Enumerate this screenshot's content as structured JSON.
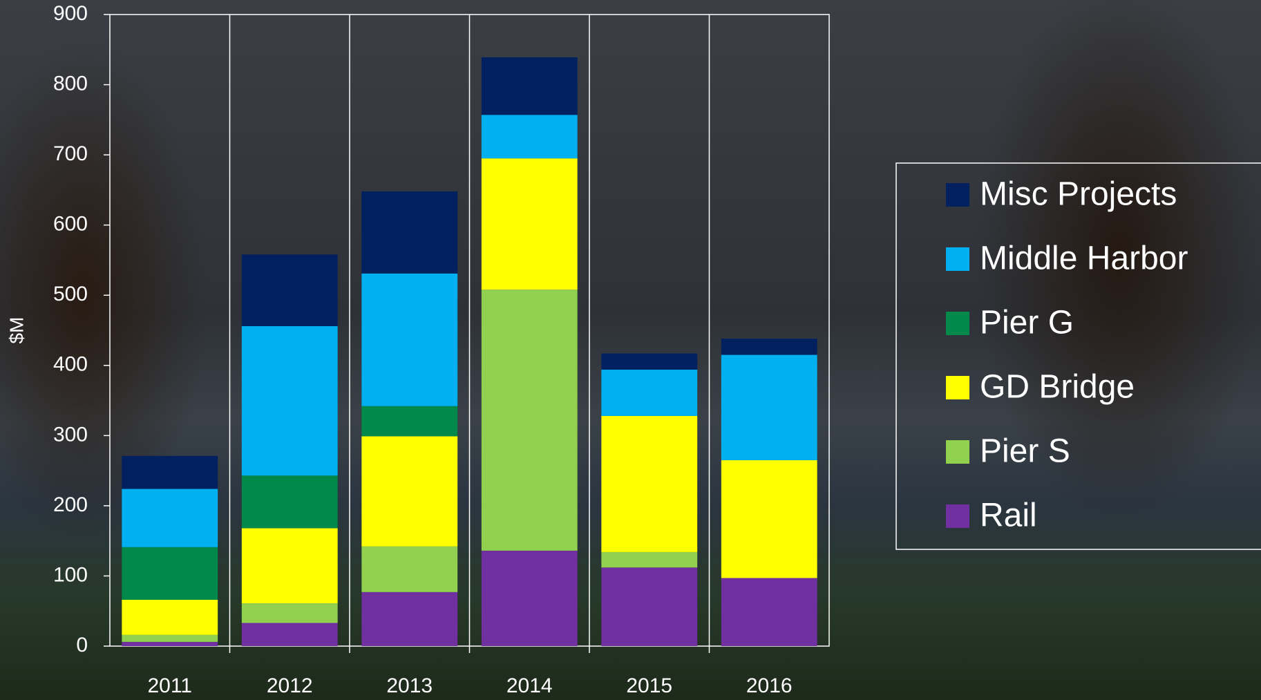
{
  "chart_data": {
    "type": "stacked_bar",
    "y_label": "$M",
    "categories": [
      "2011",
      "2012",
      "2013",
      "2014",
      "2015",
      "2016"
    ],
    "series": [
      {
        "name": "Rail",
        "color": "#7030a0",
        "values": [
          6,
          33,
          77,
          136,
          112,
          97
        ]
      },
      {
        "name": "Pier S",
        "color": "#92d050",
        "values": [
          10,
          28,
          65,
          372,
          22,
          0
        ]
      },
      {
        "name": "GD Bridge",
        "color": "#ffff00",
        "values": [
          50,
          107,
          157,
          187,
          194,
          168
        ]
      },
      {
        "name": "Pier G",
        "color": "#00894a",
        "values": [
          75,
          75,
          43,
          0,
          0,
          0
        ]
      },
      {
        "name": "Middle Harbor",
        "color": "#00b0f0",
        "values": [
          83,
          213,
          189,
          62,
          66,
          150
        ]
      },
      {
        "name": "Misc Projects",
        "color": "#002060",
        "values": [
          47,
          102,
          117,
          82,
          23,
          23
        ]
      }
    ],
    "ylim": [
      0,
      900
    ],
    "yticks": [
      0,
      100,
      200,
      300,
      400,
      500,
      600,
      700,
      800,
      900
    ],
    "legend": "right"
  }
}
